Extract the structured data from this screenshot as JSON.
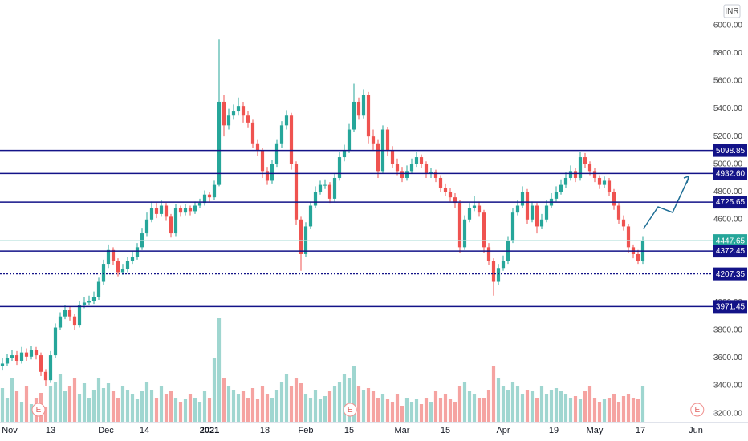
{
  "chart_data": {
    "type": "candlestick",
    "currency": "INR",
    "xlim": [
      -0.5,
      147.5
    ],
    "xticks": [
      {
        "value": 1.5,
        "label": "Nov"
      },
      {
        "value": 10,
        "label": "13"
      },
      {
        "value": 21.5,
        "label": "Dec"
      },
      {
        "value": 29.5,
        "label": "14"
      },
      {
        "value": 43,
        "label": "2021"
      },
      {
        "value": 54.5,
        "label": "18"
      },
      {
        "value": 63,
        "label": "Feb"
      },
      {
        "value": 72,
        "label": "15"
      },
      {
        "value": 83,
        "label": "Mar"
      },
      {
        "value": 92,
        "label": "15"
      },
      {
        "value": 104,
        "label": "Apr"
      },
      {
        "value": 114.5,
        "label": "19"
      },
      {
        "value": 123,
        "label": "May"
      },
      {
        "value": 132.5,
        "label": "17"
      },
      {
        "value": 144,
        "label": "Jun"
      }
    ],
    "ylim": [
      3140,
      6185
    ],
    "yticks": [
      {
        "value": 3200,
        "label": "3200.00"
      },
      {
        "value": 3400,
        "label": "3400.00"
      },
      {
        "value": 3600,
        "label": "3600.00"
      },
      {
        "value": 3800,
        "label": "3800.00"
      },
      {
        "value": 4000,
        "label": "4000.00"
      },
      {
        "value": 4200,
        "label": "4200.00"
      },
      {
        "value": 4400,
        "label": "4400.00"
      },
      {
        "value": 4600,
        "label": "4600.00"
      },
      {
        "value": 4800,
        "label": "4800.00"
      },
      {
        "value": 5000,
        "label": "5000.00"
      },
      {
        "value": 5200,
        "label": "5200.00"
      },
      {
        "value": 5400,
        "label": "5400.00"
      },
      {
        "value": 5600,
        "label": "5600.00"
      },
      {
        "value": 5800,
        "label": "5800.00"
      },
      {
        "value": 6000,
        "label": "6000.00"
      }
    ],
    "grid": false,
    "up_color": "#26a69a",
    "down_color": "#ef5350",
    "volume_up_color": "#9fd6d0",
    "volume_down_color": "#f5a3a1",
    "open": [
      3540,
      3560,
      3600,
      3620,
      3580,
      3640,
      3610,
      3660,
      3620,
      3500,
      3440,
      3620,
      3820,
      3900,
      3950,
      3900,
      3840,
      3980,
      4000,
      4010,
      4040,
      4150,
      4280,
      4380,
      4300,
      4220,
      4240,
      4300,
      4330,
      4400,
      4500,
      4600,
      4680,
      4640,
      4700,
      4620,
      4500,
      4680,
      4650,
      4680,
      4660,
      4700,
      4720,
      4780,
      4760,
      4850,
      5450,
      5280,
      5350,
      5380,
      5420,
      5350,
      5300,
      5150,
      5100,
      4950,
      4880,
      5000,
      5150,
      5280,
      5350,
      5000,
      4600,
      4350,
      4550,
      4700,
      4800,
      4850,
      4850,
      4750,
      4900,
      5050,
      5100,
      5250,
      5450,
      5350,
      5500,
      5200,
      5150,
      4950,
      5250,
      5100,
      5000,
      4950,
      4900,
      4950,
      5000,
      5050,
      5000,
      4930,
      4940,
      4900,
      4830,
      4800,
      4760,
      4720,
      4400,
      4600,
      4680,
      4700,
      4650,
      4400,
      4300,
      4150,
      4250,
      4300,
      4450,
      4650,
      4700,
      4800,
      4600,
      4700,
      4550,
      4600,
      4700,
      4750,
      4800,
      4850,
      4900,
      4950,
      4900,
      5050,
      5000,
      4950,
      4900,
      4850,
      4880,
      4800,
      4700,
      4600,
      4550,
      4400,
      4350,
      4300
    ],
    "high": [
      3600,
      3630,
      3660,
      3650,
      3680,
      3670,
      3690,
      3680,
      3640,
      3520,
      3650,
      3850,
      3930,
      3980,
      3970,
      3920,
      4010,
      4040,
      4050,
      4080,
      4180,
      4310,
      4420,
      4400,
      4320,
      4280,
      4330,
      4370,
      4430,
      4540,
      4650,
      4730,
      4720,
      4740,
      4720,
      4640,
      4710,
      4700,
      4710,
      4700,
      4730,
      4750,
      4810,
      4800,
      4880,
      5900,
      5500,
      5400,
      5430,
      5480,
      5450,
      5380,
      5320,
      5180,
      5120,
      4980,
      5030,
      5180,
      5310,
      5390,
      5370,
      5020,
      4620,
      4580,
      4730,
      4840,
      4880,
      4890,
      4870,
      4930,
      5090,
      5140,
      5290,
      5580,
      5480,
      5540,
      5520,
      5250,
      5180,
      5280,
      5270,
      5130,
      5040,
      4980,
      4990,
      5040,
      5090,
      5070,
      5020,
      4970,
      4960,
      4920,
      4860,
      4830,
      4790,
      4740,
      4630,
      4720,
      4770,
      4730,
      4670,
      4430,
      4320,
      4280,
      4340,
      4480,
      4680,
      4740,
      4840,
      4820,
      4730,
      4720,
      4640,
      4740,
      4790,
      4840,
      4890,
      4940,
      4990,
      4970,
      5090,
      5080,
      5020,
      4970,
      4920,
      4910,
      4900,
      4820,
      4720,
      4630,
      4570,
      4420,
      4380,
      4480
    ],
    "low": [
      3510,
      3540,
      3580,
      3550,
      3560,
      3580,
      3590,
      3590,
      3470,
      3400,
      3420,
      3600,
      3800,
      3880,
      3870,
      3800,
      3820,
      3960,
      3980,
      3990,
      4020,
      4130,
      4250,
      4270,
      4190,
      4200,
      4220,
      4280,
      4310,
      4380,
      4480,
      4580,
      4610,
      4620,
      4590,
      4470,
      4480,
      4620,
      4630,
      4630,
      4640,
      4680,
      4700,
      4730,
      4740,
      4840,
      5200,
      5250,
      5320,
      5350,
      5300,
      5260,
      5120,
      5060,
      4900,
      4850,
      4860,
      4980,
      5120,
      5250,
      4960,
      4560,
      4230,
      4330,
      4530,
      4680,
      4780,
      4820,
      4720,
      4730,
      4880,
      5020,
      5080,
      5230,
      5320,
      5330,
      5150,
      5100,
      4900,
      4930,
      5060,
      4970,
      4920,
      4870,
      4880,
      4930,
      4980,
      4970,
      4900,
      4900,
      4870,
      4800,
      4770,
      4730,
      4680,
      4360,
      4380,
      4580,
      4660,
      4620,
      4360,
      4270,
      4050,
      4130,
      4230,
      4280,
      4430,
      4630,
      4680,
      4570,
      4580,
      4500,
      4530,
      4580,
      4680,
      4730,
      4780,
      4830,
      4880,
      4870,
      4880,
      4970,
      4920,
      4870,
      4820,
      4830,
      4770,
      4670,
      4570,
      4520,
      4360,
      4320,
      4280,
      4280
    ],
    "close": [
      3560,
      3600,
      3620,
      3580,
      3640,
      3610,
      3660,
      3620,
      3500,
      3440,
      3620,
      3820,
      3900,
      3950,
      3900,
      3840,
      3980,
      4000,
      4010,
      4040,
      4150,
      4280,
      4380,
      4300,
      4220,
      4240,
      4300,
      4330,
      4400,
      4500,
      4600,
      4680,
      4640,
      4700,
      4620,
      4500,
      4680,
      4650,
      4680,
      4660,
      4700,
      4720,
      4780,
      4760,
      4850,
      5450,
      5280,
      5350,
      5380,
      5420,
      5350,
      5300,
      5150,
      5100,
      4950,
      4880,
      5000,
      5150,
      5280,
      5350,
      5000,
      4600,
      4350,
      4550,
      4700,
      4800,
      4850,
      4850,
      4750,
      4900,
      5050,
      5100,
      5250,
      5450,
      5350,
      5500,
      5200,
      5150,
      4950,
      5250,
      5100,
      5000,
      4950,
      4900,
      4950,
      5000,
      5050,
      5000,
      4930,
      4940,
      4900,
      4830,
      4800,
      4760,
      4720,
      4400,
      4600,
      4680,
      4700,
      4650,
      4400,
      4300,
      4150,
      4250,
      4300,
      4450,
      4650,
      4700,
      4800,
      4600,
      4700,
      4550,
      4600,
      4700,
      4750,
      4800,
      4850,
      4900,
      4950,
      4900,
      5050,
      5000,
      4950,
      4900,
      4850,
      4880,
      4800,
      4700,
      4600,
      4550,
      4400,
      4350,
      4300,
      4447.65
    ],
    "volume": [
      42,
      30,
      55,
      38,
      25,
      45,
      22,
      30,
      36,
      18,
      44,
      50,
      60,
      38,
      45,
      55,
      35,
      48,
      30,
      40,
      55,
      42,
      48,
      38,
      30,
      45,
      40,
      35,
      28,
      38,
      50,
      40,
      30,
      45,
      35,
      38,
      30,
      25,
      28,
      35,
      30,
      25,
      38,
      30,
      80,
      130,
      55,
      45,
      40,
      35,
      38,
      30,
      42,
      28,
      45,
      35,
      30,
      40,
      50,
      60,
      45,
      55,
      48,
      35,
      30,
      40,
      28,
      32,
      38,
      45,
      50,
      60,
      55,
      70,
      45,
      40,
      42,
      38,
      30,
      35,
      28,
      25,
      35,
      20,
      30,
      25,
      28,
      22,
      30,
      25,
      38,
      30,
      35,
      28,
      25,
      45,
      50,
      38,
      35,
      30,
      30,
      40,
      70,
      55,
      45,
      40,
      50,
      45,
      35,
      40,
      38,
      30,
      45,
      35,
      40,
      42,
      38,
      35,
      30,
      32,
      28,
      38,
      45,
      30,
      25,
      28,
      30,
      35,
      25,
      32,
      35,
      30,
      28,
      45
    ],
    "price_lines": [
      {
        "value": 5098.85,
        "color": "#131388",
        "style": "solid"
      },
      {
        "value": 4932.6,
        "label": "4932.60",
        "color": "#131388",
        "style": "solid"
      },
      {
        "value": 4725.65,
        "color": "#131388",
        "style": "solid"
      },
      {
        "value": 4447.65,
        "color": "#b9e2dd",
        "style": "solid",
        "label_color": "#26a69a"
      },
      {
        "value": 4372.45,
        "color": "#131388",
        "style": "solid"
      },
      {
        "value": 4207.35,
        "color": "#131388",
        "style": "dotted"
      },
      {
        "value": 3971.45,
        "color": "#131388",
        "style": "solid"
      }
    ],
    "events": [
      {
        "x": 7.5,
        "label": "E"
      },
      {
        "x": 72.2,
        "label": "E"
      },
      {
        "x": 144.3,
        "label": "E"
      }
    ]
  }
}
